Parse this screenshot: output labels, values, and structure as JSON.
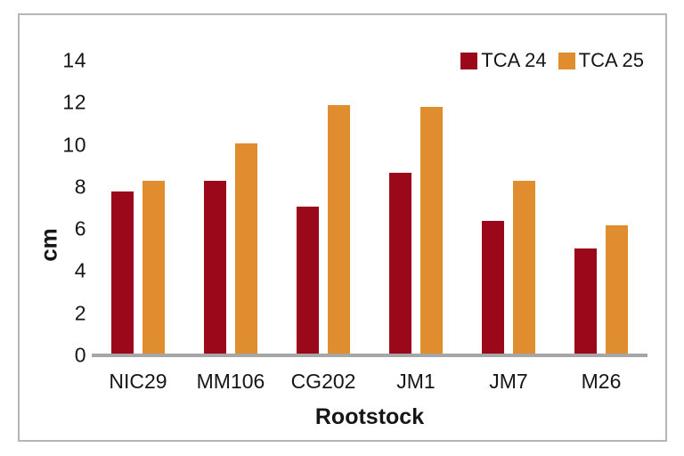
{
  "chart_data": {
    "type": "bar",
    "title": "",
    "categories": [
      "NIC29",
      "MM106",
      "CG202",
      "JM1",
      "JM7",
      "M26"
    ],
    "series": [
      {
        "name": "TCA 24",
        "color": "#9b0819",
        "values": [
          7.7,
          8.2,
          7.0,
          8.6,
          6.3,
          5.0
        ]
      },
      {
        "name": "TCA 25",
        "color": "#df8d2f",
        "values": [
          8.2,
          10.0,
          11.8,
          11.7,
          8.2,
          6.1
        ]
      }
    ],
    "xlabel": "Rootstock",
    "ylabel": "cm",
    "ylim": [
      0,
      14
    ],
    "y_ticks": [
      0,
      2,
      4,
      6,
      8,
      10,
      12,
      14
    ],
    "grid": false,
    "legend_position": "top-right"
  },
  "style_colors": {
    "axis_line": "#a6a6a6",
    "frame_border": "#b6b6b6",
    "text": "#161616",
    "background": "#ffffff"
  }
}
